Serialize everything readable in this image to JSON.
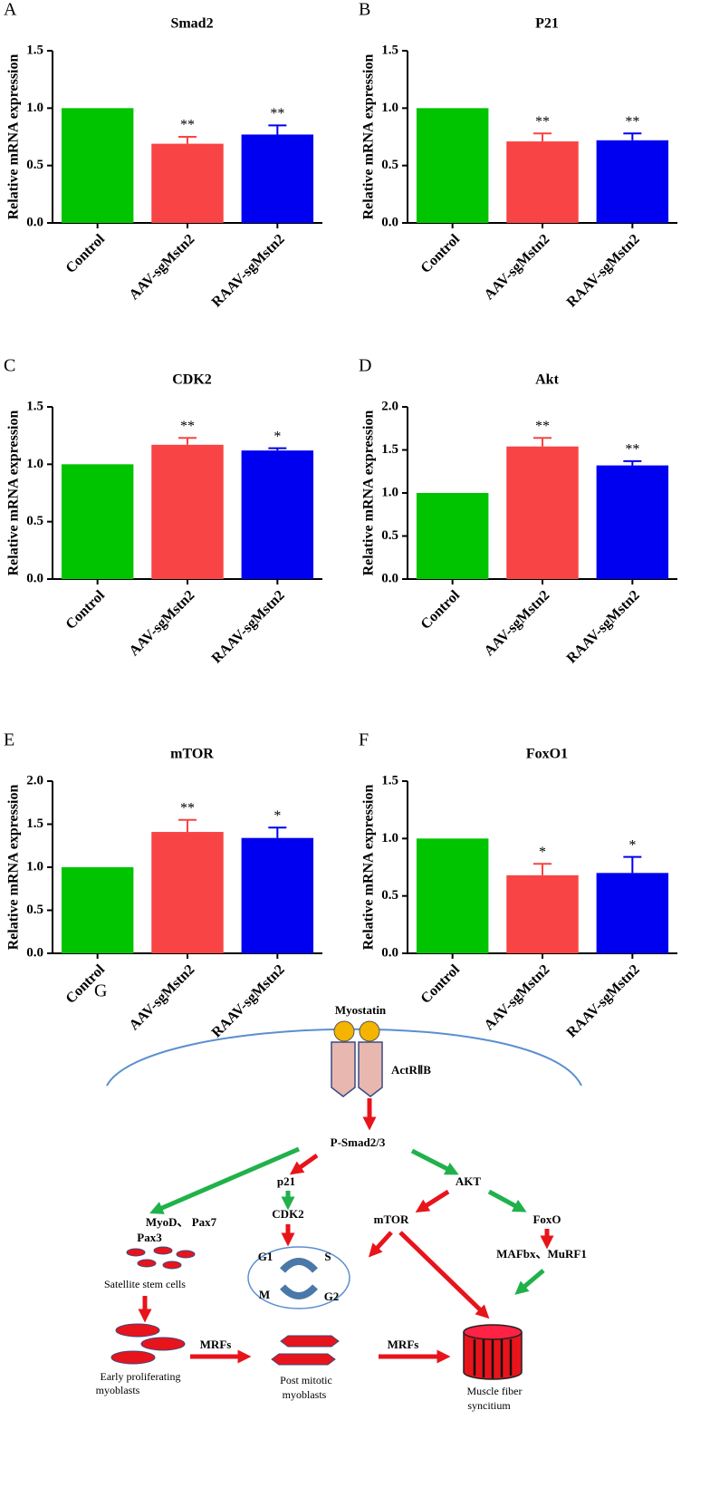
{
  "chart_data": [
    {
      "type": "bar",
      "panel": "A",
      "title": "Smad2",
      "ylabel": "Relative mRNA expression",
      "categories": [
        "Control",
        "AAV-sgMstn2",
        "RAAV-sgMstn2"
      ],
      "values": [
        1.0,
        0.69,
        0.77
      ],
      "errors": [
        null,
        0.06,
        0.08
      ],
      "annotations": [
        null,
        "**",
        "**"
      ],
      "colors": [
        "#00c400",
        "#f84444",
        "#0000f0"
      ],
      "ylim": [
        0,
        1.5
      ],
      "yticks": [
        {
          "value": 0,
          "label": "0.0"
        },
        0.5,
        {
          "value": 1,
          "label": "1.0"
        },
        1.5
      ]
    },
    {
      "type": "bar",
      "panel": "B",
      "title": "P21",
      "ylabel": "Relative mRNA expression",
      "categories": [
        "Control",
        "AAV-sgMstn2",
        "RAAV-sgMstn2"
      ],
      "values": [
        1.0,
        0.71,
        0.72
      ],
      "errors": [
        null,
        0.07,
        0.06
      ],
      "annotations": [
        null,
        "**",
        "**"
      ],
      "colors": [
        "#00c400",
        "#f84444",
        "#0000f0"
      ],
      "ylim": [
        0,
        1.5
      ],
      "yticks": [
        {
          "value": 0,
          "label": "0.0"
        },
        0.5,
        {
          "value": 1,
          "label": "1.0"
        },
        1.5
      ]
    },
    {
      "type": "bar",
      "panel": "C",
      "title": "CDK2",
      "ylabel": "Relative mRNA expression",
      "categories": [
        "Control",
        "AAV-sgMstn2",
        "RAAV-sgMstn2"
      ],
      "values": [
        1.0,
        1.17,
        1.12
      ],
      "errors": [
        null,
        0.06,
        0.02
      ],
      "annotations": [
        null,
        "**",
        "*"
      ],
      "colors": [
        "#00c400",
        "#f84444",
        "#0000f0"
      ],
      "ylim": [
        0,
        1.5
      ],
      "yticks": [
        {
          "value": 0,
          "label": "0.0"
        },
        0.5,
        {
          "value": 1,
          "label": "1.0"
        },
        1.5
      ]
    },
    {
      "type": "bar",
      "panel": "D",
      "title": "Akt",
      "ylabel": "Relative mRNA expression",
      "categories": [
        "Control",
        "AAV-sgMstn2",
        "RAAV-sgMstn2"
      ],
      "values": [
        1.0,
        1.54,
        1.32
      ],
      "errors": [
        null,
        0.1,
        0.05
      ],
      "annotations": [
        null,
        "**",
        "**"
      ],
      "colors": [
        "#00c400",
        "#f84444",
        "#0000f0"
      ],
      "ylim": [
        0,
        2
      ],
      "yticks": [
        {
          "value": 0,
          "label": "0.0"
        },
        0.5,
        {
          "value": 1,
          "label": "1.0"
        },
        1.5,
        {
          "value": 2,
          "label": "2.0"
        }
      ]
    },
    {
      "type": "bar",
      "panel": "E",
      "title": "mTOR",
      "ylabel": "Relative mRNA expression",
      "categories": [
        "Control",
        "AAV-sgMstn2",
        "RAAV-sgMstn2"
      ],
      "values": [
        1.0,
        1.41,
        1.34
      ],
      "errors": [
        null,
        0.14,
        0.12
      ],
      "annotations": [
        null,
        "**",
        "*"
      ],
      "colors": [
        "#00c400",
        "#f84444",
        "#0000f0"
      ],
      "ylim": [
        0,
        2
      ],
      "yticks": [
        {
          "value": 0,
          "label": "0.0"
        },
        0.5,
        {
          "value": 1,
          "label": "1.0"
        },
        1.5,
        {
          "value": 2,
          "label": "2.0"
        }
      ]
    },
    {
      "type": "bar",
      "panel": "F",
      "title": "FoxO1",
      "ylabel": "Relative mRNA expression",
      "categories": [
        "Control",
        "AAV-sgMstn2",
        "RAAV-sgMstn2"
      ],
      "values": [
        1.0,
        0.68,
        0.7
      ],
      "errors": [
        null,
        0.1,
        0.14
      ],
      "annotations": [
        null,
        "*",
        "*"
      ],
      "colors": [
        "#00c400",
        "#f84444",
        "#0000f0"
      ],
      "ylim": [
        0,
        1.5
      ],
      "yticks": [
        {
          "value": 0,
          "label": "0.0"
        },
        0.5,
        {
          "value": 1,
          "label": "1.0"
        },
        1.5
      ]
    }
  ],
  "diagram": {
    "label": "G",
    "ligand": "Myostatin",
    "receptor": "ActRⅡB",
    "smad": "P-Smad2/3",
    "p21": "p21",
    "cdk2": "CDK2",
    "akt": "AKT",
    "mtor": "mTOR",
    "foxo": "FoxO",
    "atrogenes": "MAFbx、MuRF1",
    "myod": [
      "MyoD、 Pax7",
      "Pax3"
    ],
    "satellite": "Satellite stem cells",
    "cycle": [
      "G1",
      "S",
      "M",
      "G2"
    ],
    "mrfs": [
      "MRFs",
      "MRFs"
    ],
    "early": [
      "Early proliferating",
      "myoblasts"
    ],
    "post": [
      "Post mitotic",
      "myoblasts"
    ],
    "fiber": [
      "Muscle fiber",
      "syncitium"
    ]
  }
}
